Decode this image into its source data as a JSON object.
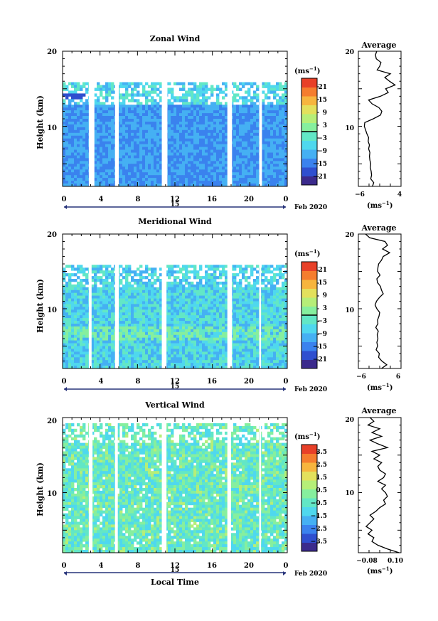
{
  "colorscale": [
    "#3b2a8c",
    "#2f4fcf",
    "#3a82ee",
    "#45b0f3",
    "#4fd8ee",
    "#62e7c6",
    "#86ef9e",
    "#b6ee78",
    "#e3e05c",
    "#f7b53e",
    "#f57d2e",
    "#e84028"
  ],
  "chart_data": [
    {
      "type": "heatmap",
      "title": "Zonal Wind",
      "ylabel": "Height (km)",
      "xlabel": "",
      "x_ticks": [
        "0",
        "4",
        "8",
        "12",
        "16",
        "20",
        "0"
      ],
      "y_ticks": [
        "20",
        "10"
      ],
      "xlim": [
        0,
        24
      ],
      "ylim": [
        2,
        20
      ],
      "date_day": "15",
      "date_month": "Feb 2020",
      "colorbar": {
        "unit": "(ms",
        "unit_sup": "−1",
        "unit_close": ")",
        "ticks": [
          "21",
          "15",
          "9",
          "3",
          "−3",
          "−9",
          "−15",
          "−21"
        ],
        "range": [
          -24,
          24
        ]
      },
      "data_gaps_hours": [
        [
          2.8,
          3.4
        ],
        [
          5.6,
          6.0
        ],
        [
          10.6,
          11.2
        ],
        [
          17.6,
          18.1
        ],
        [
          21.0,
          21.3
        ]
      ],
      "field_top_km": 15.6,
      "average_profile": {
        "title": "Average",
        "xlabel": "(ms",
        "xlabel_sup": "−1",
        "xlabel_close": ")",
        "x_ticks": [
          "−6",
          "4"
        ],
        "y_ticks": [
          "20",
          "10"
        ],
        "xlim": [
          -6,
          4
        ],
        "ylim": [
          2,
          20
        ],
        "heights": [
          2,
          2.5,
          3,
          3.5,
          4,
          4.5,
          5,
          5.5,
          6,
          6.5,
          7,
          7.5,
          8,
          8.5,
          9,
          9.5,
          10,
          10.5,
          11,
          11.5,
          12,
          12.5,
          13,
          13.5,
          14,
          14.5,
          15,
          15.5,
          16,
          16.5,
          17,
          17.5,
          18,
          18.5,
          19,
          19.5,
          20
        ],
        "values": [
          -2.7,
          -2.4,
          -3.1,
          -2.9,
          -3.0,
          -3.2,
          -3.1,
          -3.3,
          -3.4,
          -3.3,
          -3.6,
          -3.4,
          -3.7,
          -3.6,
          -4.0,
          -4.3,
          -4.6,
          -4.5,
          -2.5,
          -0.8,
          -0.5,
          -1.2,
          -2.8,
          -3.6,
          -0.8,
          1.0,
          0.4,
          2.6,
          1.3,
          0.2,
          1.5,
          -1.6,
          -1.0,
          -0.7,
          -1.8,
          -2.0,
          -1.7
        ]
      }
    },
    {
      "type": "heatmap",
      "title": "Meridional Wind",
      "ylabel": "Height (km)",
      "xlabel": "",
      "x_ticks": [
        "0",
        "4",
        "8",
        "12",
        "16",
        "20",
        "0"
      ],
      "y_ticks": [
        "20",
        "10"
      ],
      "xlim": [
        0,
        24
      ],
      "ylim": [
        2,
        20
      ],
      "date_day": "15",
      "date_month": "Feb 2020",
      "colorbar": {
        "unit": "(ms",
        "unit_sup": "−1",
        "unit_close": ")",
        "ticks": [
          "21",
          "15",
          "9",
          "3",
          "−3",
          "−9",
          "−15",
          "−21"
        ],
        "range": [
          -24,
          24
        ]
      },
      "data_gaps_hours": [
        [
          2.8,
          3.1
        ],
        [
          5.6,
          6.0
        ],
        [
          10.6,
          11.1
        ],
        [
          17.6,
          18.1
        ],
        [
          21.0,
          21.2
        ]
      ],
      "field_top_km": 15.6,
      "average_profile": {
        "title": "Average",
        "xlabel": "(ms",
        "xlabel_sup": "−1",
        "xlabel_close": ")",
        "x_ticks": [
          "−6",
          "6"
        ],
        "y_ticks": [
          "20",
          "10"
        ],
        "xlim": [
          -6,
          6
        ],
        "ylim": [
          2,
          20
        ],
        "heights": [
          2,
          2.5,
          3,
          3.5,
          4,
          4.5,
          5,
          5.5,
          6,
          6.5,
          7,
          7.5,
          8,
          8.5,
          9,
          9.5,
          10,
          10.5,
          11,
          11.5,
          12,
          12.5,
          13,
          13.5,
          14,
          14.5,
          15,
          15.5,
          16,
          16.5,
          17,
          17.5,
          18,
          18.5,
          19,
          19.5,
          20
        ],
        "values": [
          0.5,
          2.0,
          0.6,
          -0.3,
          -0.1,
          -1.0,
          -0.6,
          -0.8,
          -0.5,
          -0.7,
          -0.4,
          -1.1,
          -0.5,
          -0.6,
          -0.2,
          0.0,
          -0.8,
          -1.3,
          -0.9,
          -0.1,
          1.0,
          0.5,
          0.2,
          -0.6,
          -0.8,
          0.1,
          -0.6,
          -0.5,
          -0.3,
          0.5,
          1.0,
          2.8,
          0.8,
          2.2,
          1.5,
          -2.8,
          -4.0
        ]
      }
    },
    {
      "type": "heatmap",
      "title": "Vertical Wind",
      "ylabel": "Height (km)",
      "xlabel": "Local Time",
      "x_ticks": [
        "0",
        "4",
        "8",
        "12",
        "16",
        "20",
        "0"
      ],
      "y_ticks": [
        "20",
        "10"
      ],
      "xlim": [
        0,
        24
      ],
      "ylim": [
        2,
        20
      ],
      "date_day": "15",
      "date_month": "Feb 2020",
      "colorbar": {
        "unit": "(ms",
        "unit_sup": "−1",
        "unit_close": ")",
        "ticks": [
          "3.5",
          "2.5",
          "1.5",
          "0.5",
          "−0.5",
          "−1.5",
          "−2.5",
          "−3.5"
        ],
        "range": [
          -4,
          4
        ]
      },
      "data_gaps_hours": [
        [
          2.8,
          3.2
        ],
        [
          5.6,
          5.9
        ],
        [
          10.6,
          11.1
        ],
        [
          17.6,
          18.0
        ],
        [
          21.0,
          21.2
        ]
      ],
      "field_top_km": 19.2,
      "average_profile": {
        "title": "Average",
        "xlabel": "(ms",
        "xlabel_sup": "−1",
        "xlabel_close": ")",
        "x_ticks": [
          "−0.08",
          "0.10"
        ],
        "y_ticks": [
          "20",
          "10"
        ],
        "xlim": [
          -0.1,
          0.12
        ],
        "ylim": [
          2,
          20
        ],
        "heights": [
          2,
          2.5,
          3,
          3.5,
          4,
          4.5,
          5,
          5.5,
          6,
          6.5,
          7,
          7.5,
          8,
          8.5,
          9,
          9.5,
          10,
          10.5,
          11,
          11.5,
          12,
          12.5,
          13,
          13.5,
          14,
          14.5,
          15,
          15.5,
          16,
          16.5,
          17,
          17.5,
          18,
          18.5,
          19,
          19.5,
          20
        ],
        "values": [
          0.11,
          0.05,
          0.0,
          -0.03,
          -0.02,
          -0.05,
          -0.03,
          -0.06,
          -0.04,
          -0.02,
          -0.04,
          -0.01,
          0.01,
          0.04,
          0.03,
          0.05,
          0.04,
          0.02,
          0.04,
          0.0,
          0.03,
          0.04,
          0.01,
          0.0,
          0.02,
          -0.02,
          0.01,
          -0.03,
          0.05,
          0.0,
          -0.04,
          0.02,
          -0.03,
          0.01,
          -0.05,
          -0.02,
          -0.04
        ]
      }
    }
  ]
}
